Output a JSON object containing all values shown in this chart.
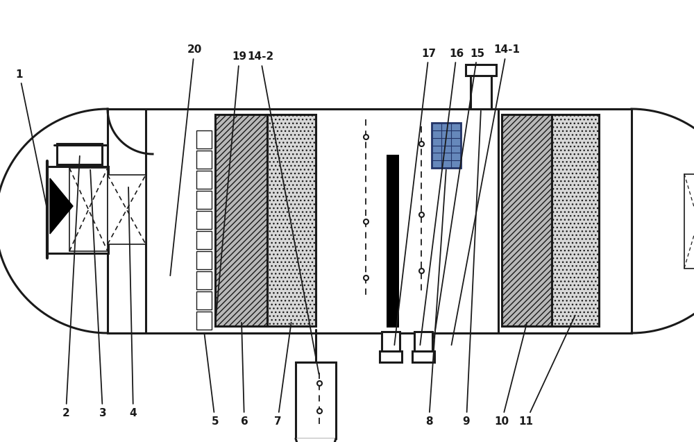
{
  "bg_color": "#ffffff",
  "line_color": "#1a1a1a",
  "blue_color": "#6688bb",
  "gray_fill1": "#b8b8b8",
  "gray_fill2": "#d8d8d8",
  "lw_main": 2.2,
  "lw_thin": 1.2,
  "lw_thick": 3.0
}
